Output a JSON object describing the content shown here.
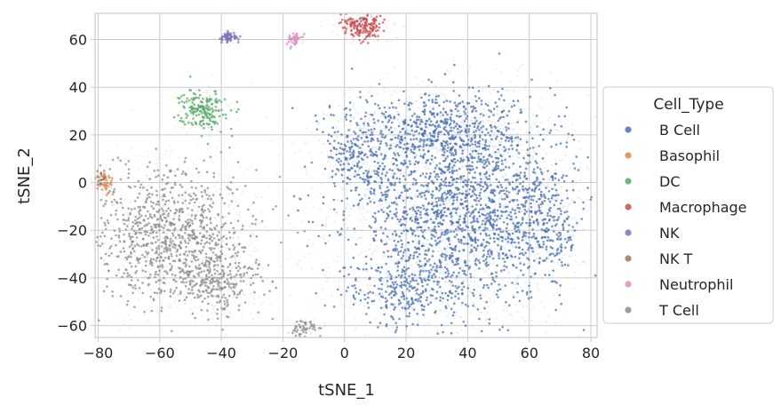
{
  "chart_data": {
    "type": "scatter",
    "xlabel": "tSNE_1",
    "ylabel": "tSNE_2",
    "xlim": [
      -81,
      82
    ],
    "ylim": [
      -65,
      71
    ],
    "x_ticks": [
      -80,
      -60,
      -40,
      -20,
      0,
      20,
      40,
      60,
      80
    ],
    "y_ticks": [
      -60,
      -40,
      -20,
      0,
      20,
      40,
      60
    ],
    "grid": true,
    "legend": {
      "title": "Cell_Type",
      "placement": "outside-right"
    },
    "series": [
      {
        "name": "B Cell",
        "color": "#4c72b0",
        "clusters": [
          {
            "cx": 38,
            "cy": -12,
            "sx": 17,
            "sy": 20,
            "n": 1600
          },
          {
            "cx": 30,
            "cy": 22,
            "sx": 14,
            "sy": 8,
            "n": 500
          },
          {
            "cx": 20,
            "cy": -45,
            "sx": 10,
            "sy": 8,
            "n": 250
          },
          {
            "cx": 65,
            "cy": -15,
            "sx": 6,
            "sy": 12,
            "n": 200
          },
          {
            "cx": 5,
            "cy": 10,
            "sx": 6,
            "sy": 10,
            "n": 200
          }
        ]
      },
      {
        "name": "Basophil",
        "color": "#dd8452",
        "clusters": [
          {
            "cx": -78,
            "cy": 0,
            "sx": 1.5,
            "sy": 2.5,
            "n": 40
          }
        ]
      },
      {
        "name": "DC",
        "color": "#55a868",
        "clusters": [
          {
            "cx": -46,
            "cy": 31,
            "sx": 3.5,
            "sy": 4,
            "n": 180
          }
        ]
      },
      {
        "name": "Macrophage",
        "color": "#c44e52",
        "clusters": [
          {
            "cx": 6,
            "cy": 65,
            "sx": 3.5,
            "sy": 2.5,
            "n": 160
          }
        ]
      },
      {
        "name": "NK",
        "color": "#8172b3",
        "clusters": [
          {
            "cx": -37.5,
            "cy": 61,
            "sx": 1.5,
            "sy": 1.2,
            "n": 60
          }
        ]
      },
      {
        "name": "NK T",
        "color": "#937860",
        "clusters": [
          {
            "cx": -79,
            "cy": 2,
            "sx": 1.2,
            "sy": 2,
            "n": 20
          }
        ]
      },
      {
        "name": "Neutrophil",
        "color": "#da8bc3",
        "clusters": [
          {
            "cx": -16.5,
            "cy": 60,
            "sx": 1.2,
            "sy": 1.2,
            "n": 40
          }
        ]
      },
      {
        "name": "T Cell",
        "color": "#8c8c8c",
        "clusters": [
          {
            "cx": -55,
            "cy": -22,
            "sx": 13,
            "sy": 14,
            "n": 900
          },
          {
            "cx": -42,
            "cy": -42,
            "sx": 7,
            "sy": 6,
            "n": 200
          },
          {
            "cx": -13,
            "cy": -61,
            "sx": 2,
            "sy": 2,
            "n": 50
          }
        ]
      }
    ]
  }
}
